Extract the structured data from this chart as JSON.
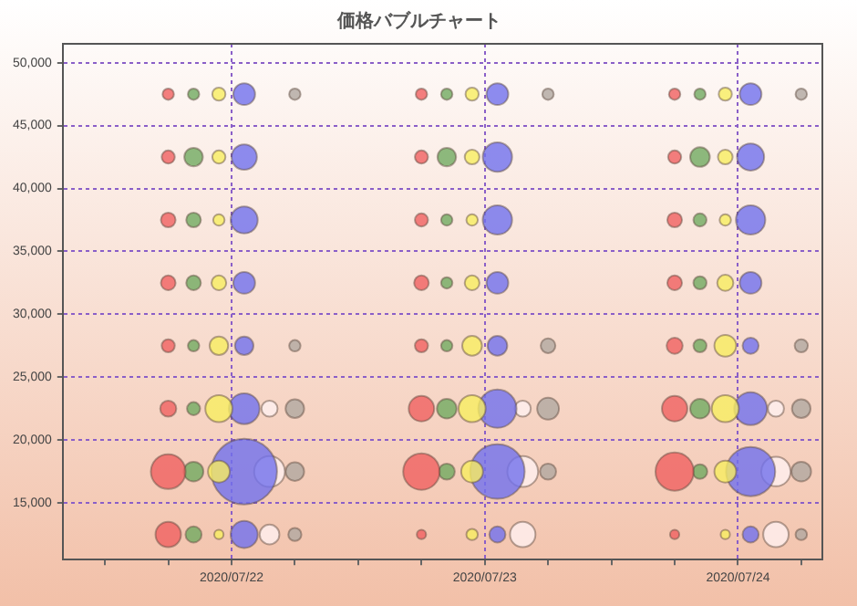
{
  "chart_data": {
    "type": "bubble",
    "title": "価格バブルチャート",
    "xlim": [
      "2020-07-21T08:00",
      "2020-07-24T08:00"
    ],
    "xticks": [
      {
        "value": "2020-07-21T12:00",
        "label": null
      },
      {
        "value": "2020-07-21T18:00",
        "label": null
      },
      {
        "value": "2020-07-22",
        "label": "2020/07/22"
      },
      {
        "value": "2020-07-22T06:00",
        "label": null
      },
      {
        "value": "2020-07-22T12:00",
        "label": null
      },
      {
        "value": "2020-07-22T18:00",
        "label": null
      },
      {
        "value": "2020-07-23",
        "label": "2020/07/23"
      },
      {
        "value": "2020-07-23T06:00",
        "label": null
      },
      {
        "value": "2020-07-23T12:00",
        "label": null
      },
      {
        "value": "2020-07-23T18:00",
        "label": null
      },
      {
        "value": "2020-07-24",
        "label": "2020/07/24"
      },
      {
        "value": "2020-07-24T06:00",
        "label": null
      }
    ],
    "ylim": [
      10500,
      51500
    ],
    "yticks": [
      {
        "value": 15000,
        "label": "15,000"
      },
      {
        "value": 20000,
        "label": "20,000"
      },
      {
        "value": 25000,
        "label": "25,000"
      },
      {
        "value": 30000,
        "label": "30,000"
      },
      {
        "value": 35000,
        "label": "35,000"
      },
      {
        "value": 40000,
        "label": "40,000"
      },
      {
        "value": 45000,
        "label": "45,000"
      },
      {
        "value": 50000,
        "label": "50,000"
      }
    ],
    "grid": true,
    "series": [
      {
        "color": "#f06060",
        "x": [
          "2020-07-21T18:00",
          "2020-07-21T18:00",
          "2020-07-21T18:00",
          "2020-07-21T18:00",
          "2020-07-21T18:00",
          "2020-07-21T18:00",
          "2020-07-21T18:00",
          "2020-07-21T18:00",
          "2020-07-22T18:00",
          "2020-07-22T18:00",
          "2020-07-22T18:00",
          "2020-07-22T18:00",
          "2020-07-22T18:00",
          "2020-07-22T18:00",
          "2020-07-22T18:00",
          "2020-07-22T18:00",
          "2020-07-23T18:00",
          "2020-07-23T18:00",
          "2020-07-23T18:00",
          "2020-07-23T18:00",
          "2020-07-23T18:00",
          "2020-07-23T18:00",
          "2020-07-23T18:00",
          "2020-07-23T18:00"
        ],
        "values": [
          47500,
          42500,
          37500,
          32500,
          27500,
          22500,
          17500,
          12500,
          47500,
          42500,
          37500,
          32500,
          27500,
          22500,
          17500,
          12500,
          47500,
          42500,
          37500,
          32500,
          27500,
          22500,
          17500,
          12500
        ],
        "sizes": [
          0.03,
          0.04,
          0.05,
          0.05,
          0.04,
          0.06,
          0.28,
          0.15,
          0.03,
          0.04,
          0.04,
          0.05,
          0.04,
          0.15,
          0.31,
          0.02,
          0.03,
          0.04,
          0.05,
          0.05,
          0.06,
          0.15,
          0.34,
          0.02
        ]
      },
      {
        "color": "#70aa60",
        "x": [
          "2020-07-21T20:24",
          "2020-07-21T20:24",
          "2020-07-21T20:24",
          "2020-07-21T20:24",
          "2020-07-21T20:24",
          "2020-07-21T20:24",
          "2020-07-21T20:24",
          "2020-07-21T20:24",
          "2020-07-22T20:24",
          "2020-07-22T20:24",
          "2020-07-22T20:24",
          "2020-07-22T20:24",
          "2020-07-22T20:24",
          "2020-07-22T20:24",
          "2020-07-22T20:24",
          "2020-07-23T20:24",
          "2020-07-23T20:24",
          "2020-07-23T20:24",
          "2020-07-23T20:24",
          "2020-07-23T20:24",
          "2020-07-23T20:24",
          "2020-07-23T20:24"
        ],
        "values": [
          47500,
          42500,
          37500,
          32500,
          27500,
          22500,
          17500,
          12500,
          47500,
          42500,
          37500,
          32500,
          27500,
          22500,
          17500,
          47500,
          42500,
          37500,
          32500,
          27500,
          22500,
          17500
        ],
        "sizes": [
          0.03,
          0.08,
          0.05,
          0.05,
          0.03,
          0.04,
          0.09,
          0.06,
          0.03,
          0.08,
          0.03,
          0.03,
          0.03,
          0.09,
          0.06,
          0.03,
          0.09,
          0.04,
          0.04,
          0.04,
          0.09,
          0.05
        ]
      },
      {
        "color": "#f8ee60",
        "x": [
          "2020-07-21T22:48",
          "2020-07-21T22:48",
          "2020-07-21T22:48",
          "2020-07-21T22:48",
          "2020-07-21T22:48",
          "2020-07-21T22:48",
          "2020-07-21T22:48",
          "2020-07-21T22:48",
          "2020-07-22T22:48",
          "2020-07-22T22:48",
          "2020-07-22T22:48",
          "2020-07-22T22:48",
          "2020-07-22T22:48",
          "2020-07-22T22:48",
          "2020-07-22T22:48",
          "2020-07-22T22:48",
          "2020-07-23T22:48",
          "2020-07-23T22:48",
          "2020-07-23T22:48",
          "2020-07-23T22:48",
          "2020-07-23T22:48",
          "2020-07-23T22:48",
          "2020-07-23T22:48",
          "2020-07-23T22:48"
        ],
        "values": [
          47500,
          42500,
          37500,
          32500,
          27500,
          22500,
          17500,
          12500,
          47500,
          42500,
          37500,
          32500,
          27500,
          22500,
          17500,
          12500,
          47500,
          42500,
          37500,
          32500,
          27500,
          22500,
          17500,
          12500
        ],
        "sizes": [
          0.04,
          0.04,
          0.03,
          0.05,
          0.08,
          0.17,
          0.11,
          0.02,
          0.04,
          0.05,
          0.03,
          0.05,
          0.09,
          0.17,
          0.11,
          0.03,
          0.04,
          0.05,
          0.03,
          0.06,
          0.11,
          0.17,
          0.11,
          0.02
        ]
      },
      {
        "color": "#7070ee",
        "x": [
          "2020-07-22T01:12",
          "2020-07-22T01:12",
          "2020-07-22T01:12",
          "2020-07-22T01:12",
          "2020-07-22T01:12",
          "2020-07-22T01:12",
          "2020-07-22T01:12",
          "2020-07-22T01:12",
          "2020-07-23T01:12",
          "2020-07-23T01:12",
          "2020-07-23T01:12",
          "2020-07-23T01:12",
          "2020-07-23T01:12",
          "2020-07-23T01:12",
          "2020-07-23T01:12",
          "2020-07-23T01:12",
          "2020-07-24T01:12",
          "2020-07-24T01:12",
          "2020-07-24T01:12",
          "2020-07-24T01:12",
          "2020-07-24T01:12",
          "2020-07-24T01:12",
          "2020-07-24T01:12",
          "2020-07-24T01:12"
        ],
        "values": [
          47500,
          42500,
          37500,
          32500,
          27500,
          22500,
          17500,
          12500,
          47500,
          42500,
          37500,
          32500,
          27500,
          22500,
          17500,
          12500,
          47500,
          42500,
          37500,
          32500,
          27500,
          22500,
          17500,
          12500
        ],
        "sizes": [
          0.11,
          0.15,
          0.17,
          0.11,
          0.08,
          0.22,
          1,
          0.17,
          0.11,
          0.2,
          0.2,
          0.11,
          0.09,
          0.34,
          0.69,
          0.06,
          0.11,
          0.17,
          0.2,
          0.11,
          0.06,
          0.25,
          0.56,
          0.06
        ]
      },
      {
        "color": "#fff0f0",
        "x": [
          "2020-07-22T03:36",
          "2020-07-22T03:36",
          "2020-07-22T03:36",
          "2020-07-23T03:36",
          "2020-07-23T03:36",
          "2020-07-23T03:36",
          "2020-07-24T03:36",
          "2020-07-24T03:36",
          "2020-07-24T03:36"
        ],
        "values": [
          22500,
          17500,
          12500,
          22500,
          17500,
          12500,
          22500,
          17500,
          12500
        ],
        "sizes": [
          0.06,
          0.22,
          0.09,
          0.06,
          0.22,
          0.15,
          0.06,
          0.2,
          0.15
        ]
      },
      {
        "color": "#b0a8a0",
        "x": [
          "2020-07-22T06:00",
          "2020-07-22T06:00",
          "2020-07-22T06:00",
          "2020-07-22T06:00",
          "2020-07-22T06:00",
          "2020-07-23T06:00",
          "2020-07-23T06:00",
          "2020-07-23T06:00",
          "2020-07-23T06:00",
          "2020-07-24T06:00",
          "2020-07-24T06:00",
          "2020-07-24T06:00",
          "2020-07-24T06:00",
          "2020-07-24T06:00"
        ],
        "values": [
          47500,
          27500,
          22500,
          17500,
          12500,
          47500,
          27500,
          22500,
          17500,
          47500,
          27500,
          22500,
          17500,
          12500
        ],
        "sizes": [
          0.03,
          0.03,
          0.08,
          0.08,
          0.04,
          0.03,
          0.05,
          0.11,
          0.06,
          0.03,
          0.04,
          0.08,
          0.09,
          0.03
        ]
      }
    ]
  }
}
